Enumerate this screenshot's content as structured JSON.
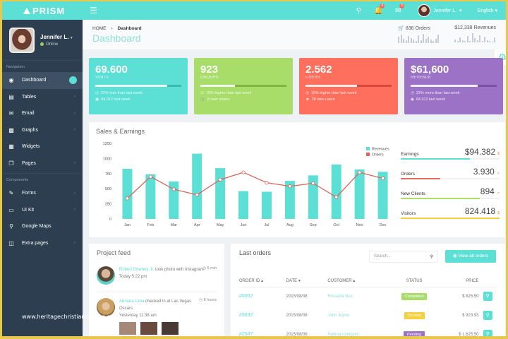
{
  "topbar": {
    "brand": "PRISM",
    "menu_icon": "hamburger-icon",
    "search_icon": "search-icon",
    "notifications": {
      "icon": "bell-icon",
      "count": "4"
    },
    "messages": {
      "icon": "envelope-icon",
      "count": "5"
    },
    "user_name": "Jennifer L.",
    "language": "English"
  },
  "sidebar": {
    "profile": {
      "name": "Jennifer L.",
      "status": "Online"
    },
    "section_navigation": "Navigation",
    "section_components": "Components",
    "nav_items": [
      {
        "label": "Dashboard",
        "icon": "dashboard-icon",
        "active": true
      },
      {
        "label": "Tables",
        "icon": "table-icon"
      },
      {
        "label": "Email",
        "icon": "envelope-icon"
      },
      {
        "label": "Graphs",
        "icon": "bar-chart-icon"
      },
      {
        "label": "Widgets",
        "icon": "grid-icon"
      },
      {
        "label": "Pages",
        "icon": "pages-icon"
      }
    ],
    "component_items": [
      {
        "label": "Forms",
        "icon": "edit-icon"
      },
      {
        "label": "UI Kit",
        "icon": "monitor-icon"
      },
      {
        "label": "Google Maps",
        "icon": "map-pin-icon"
      },
      {
        "label": "Extra pages",
        "icon": "file-icon"
      }
    ],
    "watermark": "www.heritagechristiancollege.com"
  },
  "header": {
    "breadcrumb": [
      "HOME",
      "Dashboard"
    ],
    "title": "Dashboard",
    "orders_stat": "836 Orders",
    "revenue_stat": "$12,338 Revenues"
  },
  "cards": [
    {
      "value": "69.600",
      "label": "VISITS",
      "color": "#5ce0d6",
      "track": "#3bb8b0",
      "progress": 84,
      "line1": "22% less than last week",
      "line2": "84.312 last week"
    },
    {
      "value": "923",
      "label": "ORDERS",
      "color": "#a8dd6a",
      "track": "#7fb345",
      "progress": 40,
      "line1": "15% higher than last week",
      "line2": "8 new orders"
    },
    {
      "value": "2.562",
      "label": "USERS",
      "color": "#ff6f5e",
      "track": "#d9473a",
      "progress": 60,
      "line1": "10% higher than last week",
      "line2": "28 new users"
    },
    {
      "value": "$61,600",
      "label": "REVENUE",
      "color": "#9b72c6",
      "track": "#7a52a8",
      "progress": 78,
      "line1": "22% more than last week",
      "line2": "84.312 last week"
    }
  ],
  "sales": {
    "title": "Sales & Earnings",
    "stats": [
      {
        "name": "Earnings",
        "value": "$94.382",
        "color": "#5ce0d6",
        "pct": 70
      },
      {
        "name": "Orders",
        "value": "3.930",
        "color": "#e26a5e",
        "pct": 40
      },
      {
        "name": "New Clients",
        "value": "894",
        "color": "#a8dd6a",
        "pct": 80
      },
      {
        "name": "Visitors",
        "value": "824.418",
        "color": "#f2d040",
        "pct": 100
      }
    ]
  },
  "chart_data": {
    "type": "bar",
    "title": "Sales & Earnings",
    "categories": [
      "Jan",
      "Feb",
      "Mar",
      "Apr",
      "May",
      "Jun",
      "Jul",
      "Aug",
      "Sep",
      "Oct",
      "Nov",
      "Dec"
    ],
    "series": [
      {
        "name": "Revenues",
        "type": "bar",
        "color": "#5ce0d6",
        "values": [
          830,
          740,
          620,
          1080,
          840,
          460,
          450,
          630,
          720,
          900,
          820,
          780
        ]
      },
      {
        "name": "Orders",
        "type": "line",
        "color": "#d9645a",
        "values": [
          340,
          700,
          490,
          400,
          650,
          770,
          600,
          540,
          590,
          360,
          770,
          670
        ]
      }
    ],
    "yticks": [
      0,
      250,
      500,
      750,
      1000,
      1250
    ],
    "ylim": [
      0,
      1250
    ],
    "legend_position": "top-right",
    "xlabel": "",
    "ylabel": ""
  },
  "feed": {
    "title": "Project feed",
    "items": [
      {
        "who": "Robert Downey Jr.",
        "text": " took photo with Instagram",
        "date": "Today 5:22 pm",
        "ago": "5 min"
      },
      {
        "who": "Adriana Lima",
        "text": " checked in at Las Vegas Oscars",
        "date": "Yesterday 11:38 am",
        "ago": "8 hours"
      }
    ]
  },
  "orders": {
    "title": "Last orders",
    "search_placeholder": "Search...",
    "view_all": "View all orders",
    "columns": [
      "ORDER ID ▴",
      "DATE ▾",
      "CUSTOMER ▴",
      "STATUS",
      "PRICE"
    ],
    "rows": [
      {
        "id": "#6002",
        "date": "2015/08/08",
        "customer": "Rossella Nos",
        "status": "Completed",
        "status_color": "#a8dd6a",
        "price": "$ 825.50"
      },
      {
        "id": "#5832",
        "date": "2015/08/08",
        "customer": "John Joyne",
        "status": "On hold",
        "status_color": "#f2d040",
        "price": "$ 923.93"
      },
      {
        "id": "#2547",
        "date": "2015/08/08",
        "customer": "Helena Lindqvist",
        "status": "Pending",
        "status_color": "#9b72c6",
        "price": "$ 1.625.50"
      }
    ]
  }
}
